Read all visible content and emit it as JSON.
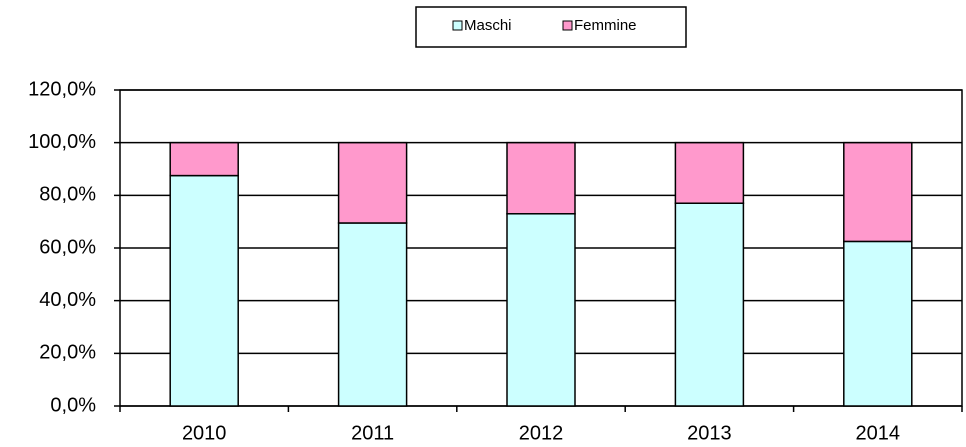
{
  "chart_data": {
    "type": "stacked_bar",
    "categories": [
      "2010",
      "2011",
      "2012",
      "2013",
      "2014"
    ],
    "series": [
      {
        "name": "Maschi",
        "color": "#ccffff",
        "values": [
          87.5,
          69.5,
          73,
          77,
          62.5
        ]
      },
      {
        "name": "Femmine",
        "color": "#ff99cc",
        "values": [
          12.5,
          30.5,
          27,
          23,
          37.5
        ]
      }
    ],
    "ylim": [
      0,
      120
    ],
    "yticks": [
      {
        "value": 0,
        "label": "0,0%"
      },
      {
        "value": 20,
        "label": "20,0%"
      },
      {
        "value": 40,
        "label": "40,0%"
      },
      {
        "value": 60,
        "label": "60,0%"
      },
      {
        "value": 80,
        "label": "80,0%"
      },
      {
        "value": 100,
        "label": "100,0%"
      },
      {
        "value": 120,
        "label": "120,0%"
      }
    ],
    "grid": true,
    "legend": "top"
  }
}
